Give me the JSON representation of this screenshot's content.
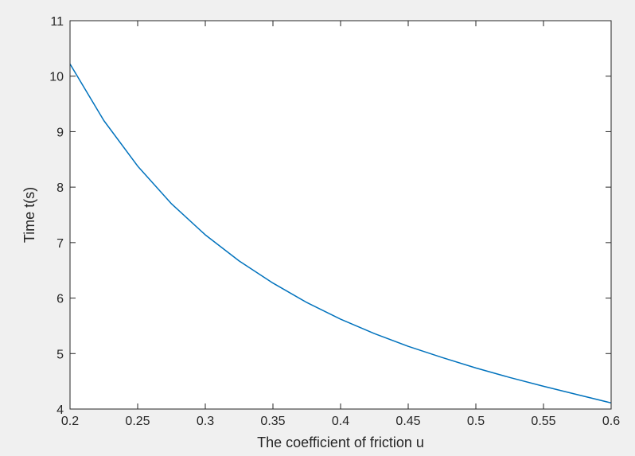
{
  "chart_data": {
    "type": "line",
    "title": "",
    "xlabel": "The coefficient of friction u",
    "ylabel": "Time t(s)",
    "xlim": [
      0.2,
      0.6
    ],
    "ylim": [
      4,
      11
    ],
    "xticks": [
      0.2,
      0.25,
      0.3,
      0.35,
      0.4,
      0.45,
      0.5,
      0.55,
      0.6
    ],
    "xtick_labels": [
      "0.2",
      "0.25",
      "0.3",
      "0.35",
      "0.4",
      "0.45",
      "0.5",
      "0.55",
      "0.6"
    ],
    "yticks": [
      4,
      5,
      6,
      7,
      8,
      9,
      10,
      11
    ],
    "ytick_labels": [
      "4",
      "5",
      "6",
      "7",
      "8",
      "9",
      "10",
      "11"
    ],
    "grid": false,
    "legend": "none",
    "series": [
      {
        "color": "#0072bd",
        "x": [
          0.2,
          0.225,
          0.25,
          0.275,
          0.3,
          0.325,
          0.35,
          0.375,
          0.4,
          0.425,
          0.45,
          0.475,
          0.5,
          0.525,
          0.55,
          0.575,
          0.6
        ],
        "y": [
          10.22,
          9.2,
          8.38,
          7.7,
          7.14,
          6.67,
          6.27,
          5.92,
          5.62,
          5.36,
          5.13,
          4.93,
          4.74,
          4.57,
          4.41,
          4.26,
          4.11
        ]
      }
    ]
  }
}
